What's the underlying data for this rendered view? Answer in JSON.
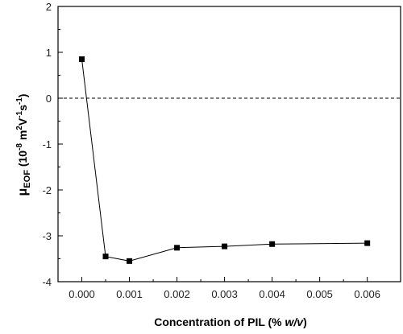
{
  "chart_data": {
    "type": "line",
    "title": "",
    "xlabel": {
      "before": "Concentration of PIL (% ",
      "italic": "w/v",
      "after": ")"
    },
    "ylabel": {
      "mu": "μ",
      "sub": "EOF",
      "open": " (10",
      "exp": "-8",
      "m": " m",
      "m_exp": "2",
      "v": "V",
      "v_exp": "-1",
      "s": "s",
      "s_exp": "-1",
      "close": ")"
    },
    "xlim": [
      -0.0005,
      0.0067
    ],
    "ylim": [
      -4,
      2
    ],
    "xticks": [
      0.0,
      0.001,
      0.002,
      0.003,
      0.004,
      0.005,
      0.006
    ],
    "xtick_labels": [
      "0.000",
      "0.001",
      "0.002",
      "0.003",
      "0.004",
      "0.005",
      "0.006"
    ],
    "yticks": [
      2,
      1,
      0,
      -1,
      -2,
      -3,
      -4
    ],
    "ytick_labels": [
      "2",
      "1",
      "0",
      "-1",
      "-2",
      "-3",
      "-4"
    ],
    "reference_line": {
      "y": 0,
      "style": "dashed"
    },
    "series": [
      {
        "marker": "square",
        "color": "#000000",
        "x": [
          0.0,
          0.0005,
          0.001,
          0.002,
          0.003,
          0.004,
          0.006
        ],
        "y": [
          0.85,
          -3.45,
          -3.55,
          -3.26,
          -3.23,
          -3.18,
          -3.16
        ]
      }
    ],
    "grid": false,
    "legend": "none"
  }
}
